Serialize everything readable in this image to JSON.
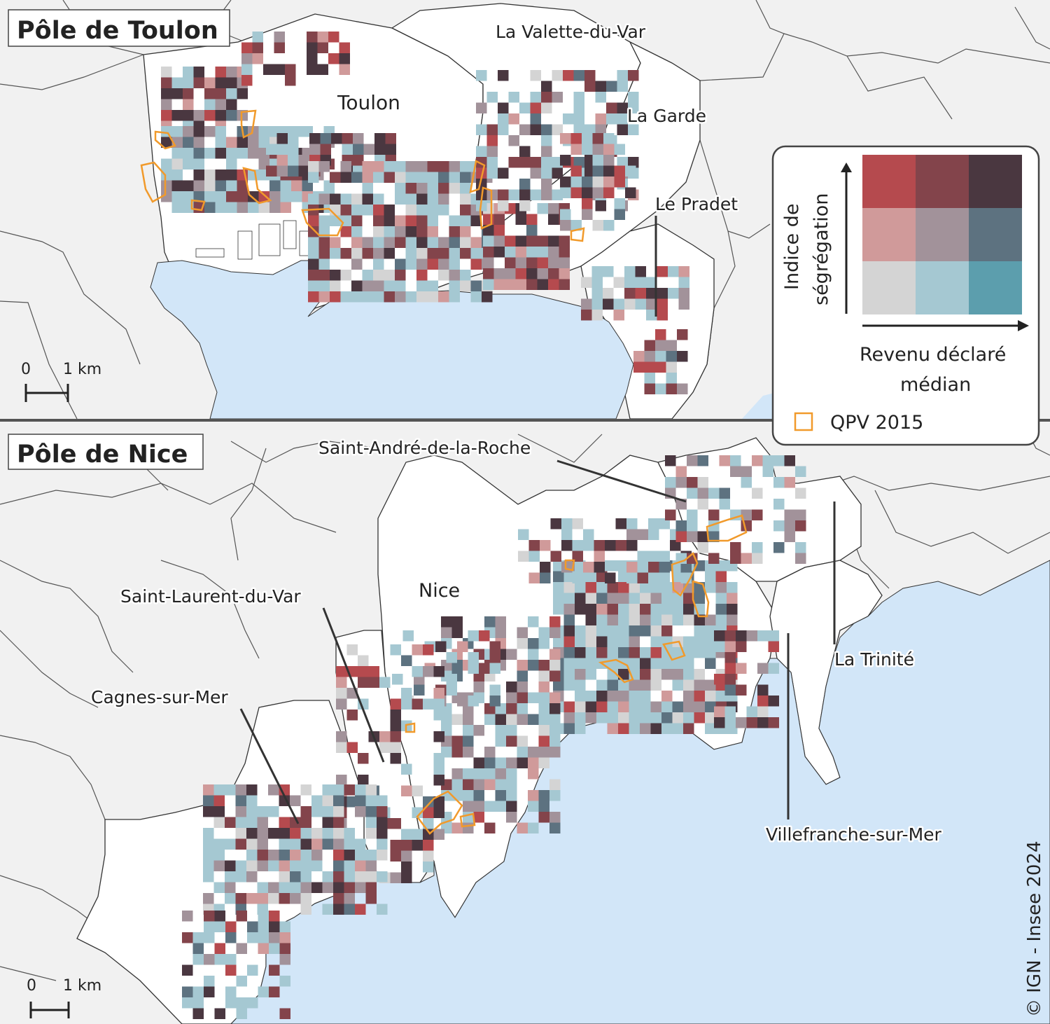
{
  "panels": [
    {
      "title": "Pôle de Toulon",
      "communes": [
        "La Valette-du-Var",
        "Toulon",
        "La Garde",
        "Le Pradet"
      ],
      "scale": {
        "zero": "0",
        "km": "1 km"
      }
    },
    {
      "title": "Pôle de Nice",
      "communes": [
        "Saint-André-de-la-Roche",
        "Nice",
        "Saint-Laurent-du-Var",
        "Cagnes-sur-Mer",
        "La Trinité",
        "Villefranche-sur-Mer"
      ],
      "scale": {
        "zero": "0",
        "km": "1 km"
      }
    }
  ],
  "legend": {
    "y_axis": [
      "Indice de",
      "ségrégation"
    ],
    "x_axis": [
      "Revenu déclaré",
      "médian"
    ],
    "qpv": "QPV 2015",
    "grid_colors": [
      [
        "#b54a4e",
        "#83444b",
        "#4a3740"
      ],
      [
        "#d09a9a",
        "#a2929a",
        "#5d7280"
      ],
      [
        "#d4d4d4",
        "#a5c8d2",
        "#5c9ead"
      ]
    ]
  },
  "colors": {
    "sea": "#d2e6f8",
    "land": "#f1f1f1",
    "pole": "#ffffff",
    "qpv": "#f19a2b",
    "panel_divider": "#555555"
  },
  "credit": "© IGN - Insee 2024"
}
